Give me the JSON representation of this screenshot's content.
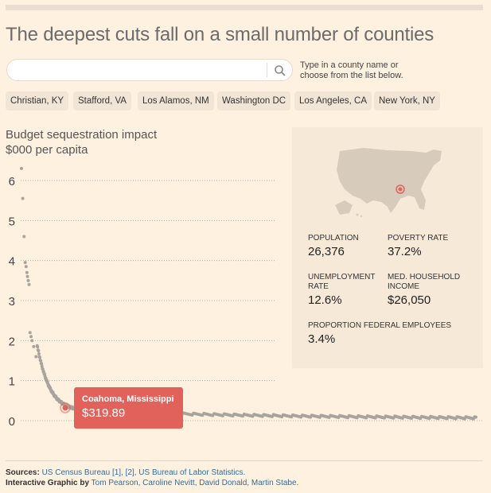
{
  "title": "The deepest cuts fall on a small number of counties",
  "search": {
    "placeholder": "",
    "hint_line1": "Type in a county name or",
    "hint_line2": "choose from the list below."
  },
  "quick_picks": [
    "Christian, KY",
    "Stafford, VA",
    "Los Alamos, NM",
    "Washington DC",
    "Los Angeles, CA",
    "New York, NY"
  ],
  "chart_heading_line1": "Budget sequestration impact",
  "chart_heading_line2": "$000 per capita",
  "selected": {
    "name": "Coahoma, Mississippi",
    "value_label": "$319.89",
    "population_label": "POPULATION",
    "population": "26,376",
    "poverty_label": "POVERTY RATE",
    "poverty": "37.2%",
    "unemployment_label": "UNEMPLOYMENT RATE",
    "unemployment": "12.6%",
    "income_label": "MED. HOUSEHOLD INCOME",
    "income": "$26,050",
    "federal_label": "PROPORTION FEDERAL EMPLOYEES",
    "federal": "3.4%"
  },
  "footer": {
    "sources_label": "Sources:",
    "sources": "US Census Bureau [1], [2], US Bureau of Labor Statistics.",
    "credits_label": "Interactive Graphic by",
    "credits": "Tom Pearson, Caroline Nevitt, David Donald, Martin Stabe."
  },
  "colors": {
    "background": "#fff1e0",
    "dots": "#a8a49d",
    "highlight": "#e0625b",
    "panel": "#f6e9d8"
  },
  "chart_data": {
    "type": "scatter",
    "title": "Budget sequestration impact",
    "ylabel": "$000 per capita",
    "ylim": [
      0,
      6.5
    ],
    "yticks": [
      0,
      1,
      2,
      3,
      4,
      5,
      6
    ],
    "x_rank_max": 3100,
    "grid": true,
    "points_top": [
      {
        "rank": 1,
        "value": 6.3
      },
      {
        "rank": 4,
        "value": 5.55
      },
      {
        "rank": 8,
        "value": 4.6
      },
      {
        "rank": 12,
        "value": 3.95
      },
      {
        "rank": 15,
        "value": 3.85
      },
      {
        "rank": 18,
        "value": 3.7
      },
      {
        "rank": 20,
        "value": 3.6
      },
      {
        "rank": 23,
        "value": 3.5
      },
      {
        "rank": 26,
        "value": 3.4
      },
      {
        "rank": 30,
        "value": 2.2
      },
      {
        "rank": 34,
        "value": 2.1
      },
      {
        "rank": 38,
        "value": 2.0
      },
      {
        "rank": 45,
        "value": 1.85
      },
      {
        "rank": 55,
        "value": 1.6
      }
    ],
    "highlight": {
      "rank": 260,
      "value": 0.32,
      "label": "Coahoma, Mississippi"
    }
  }
}
